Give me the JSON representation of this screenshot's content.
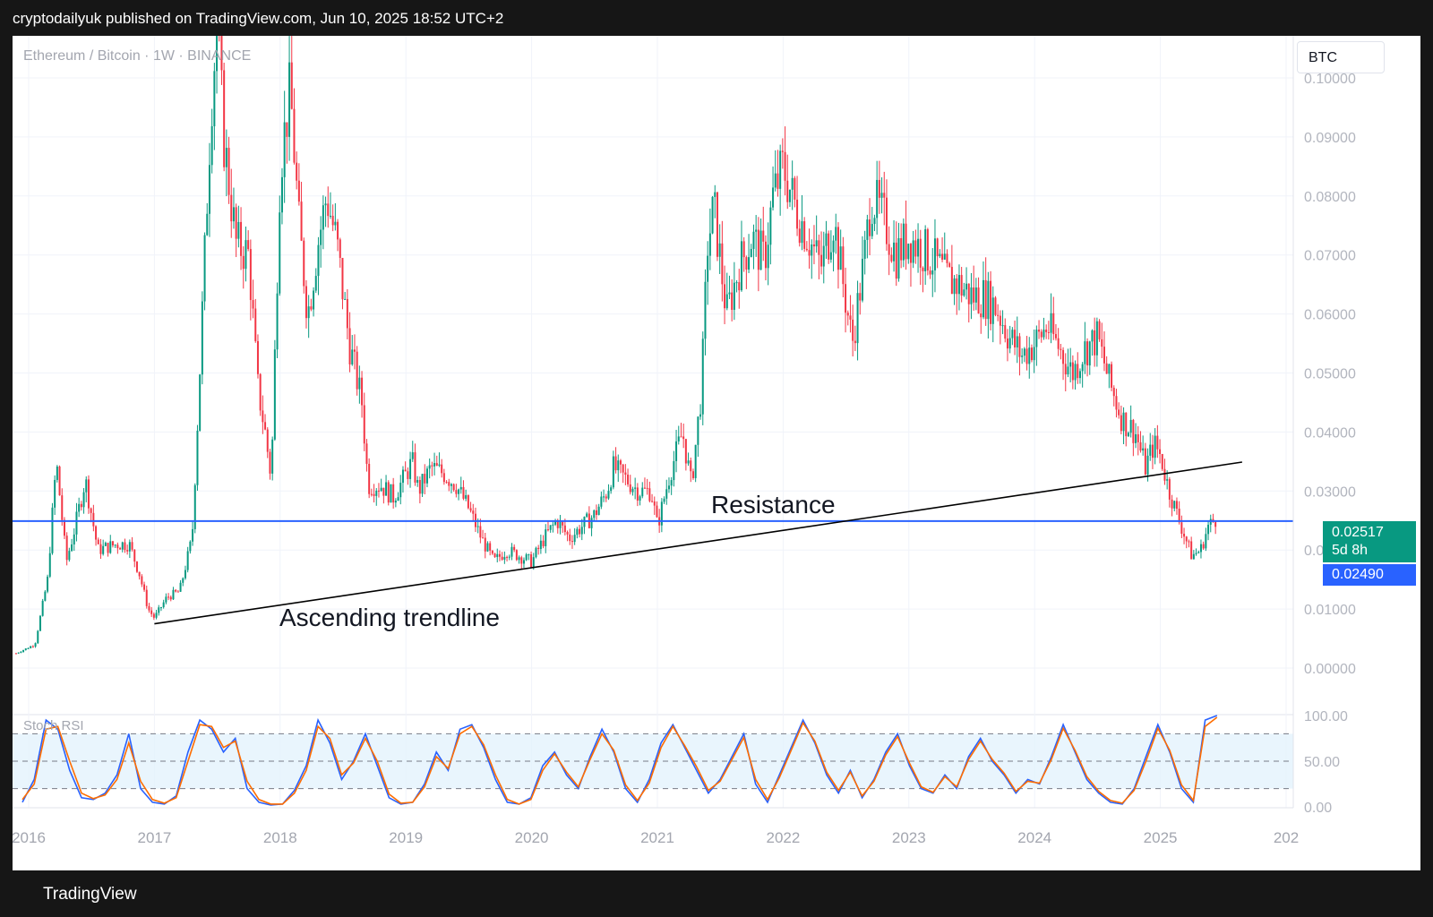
{
  "header": {
    "published": "cryptodailyuk published on TradingView.com, Jun 10, 2025 18:52 UTC+2"
  },
  "chart": {
    "symbol_title": "Ethereum / Bitcoin · 1W · BINANCE",
    "currency": "BTC",
    "last_price": "0.02517",
    "countdown": "5d 8h",
    "ref_price": "0.02490",
    "indicator_title": "Stoch RSI",
    "colors": {
      "up": "#089981",
      "down": "#f23645",
      "line": "#2962ff",
      "stoch_k": "#2962ff",
      "stoch_d": "#ff6d00",
      "trend": "#000000"
    }
  },
  "footer": {
    "brand": "TradingView",
    "logo_icon": "tradingview-logo-icon"
  },
  "chart_data": [
    {
      "type": "candlestick",
      "title": "Ethereum / Bitcoin · 1W · BINANCE",
      "ylim": [
        -0.005,
        0.108
      ],
      "y_ticks": [
        "0.00000",
        "0.01000",
        "0.02000",
        "0.03000",
        "0.04000",
        "0.05000",
        "0.06000",
        "0.07000",
        "0.08000",
        "0.09000",
        "0.10000"
      ],
      "x_ticks": [
        "2016",
        "2017",
        "2018",
        "2019",
        "2020",
        "2021",
        "2022",
        "2023",
        "2024",
        "2025",
        "202"
      ],
      "series_close_path": [
        [
          2015.9,
          0.0025
        ],
        [
          2016.05,
          0.004
        ],
        [
          2016.15,
          0.015
        ],
        [
          2016.22,
          0.035
        ],
        [
          2016.3,
          0.018
        ],
        [
          2016.37,
          0.024
        ],
        [
          2016.45,
          0.032
        ],
        [
          2016.55,
          0.02
        ],
        [
          2016.7,
          0.021
        ],
        [
          2016.8,
          0.021
        ],
        [
          2016.88,
          0.016
        ],
        [
          2016.95,
          0.01
        ],
        [
          2017.0,
          0.0085
        ],
        [
          2017.1,
          0.012
        ],
        [
          2017.2,
          0.013
        ],
        [
          2017.3,
          0.022
        ],
        [
          2017.35,
          0.045
        ],
        [
          2017.45,
          0.095
        ],
        [
          2017.5,
          0.11
        ],
        [
          2017.55,
          0.09
        ],
        [
          2017.65,
          0.072
        ],
        [
          2017.75,
          0.07
        ],
        [
          2017.82,
          0.048
        ],
        [
          2017.88,
          0.04
        ],
        [
          2017.93,
          0.032
        ],
        [
          2018.0,
          0.085
        ],
        [
          2018.08,
          0.098
        ],
        [
          2018.15,
          0.075
        ],
        [
          2018.22,
          0.06
        ],
        [
          2018.3,
          0.072
        ],
        [
          2018.37,
          0.08
        ],
        [
          2018.45,
          0.072
        ],
        [
          2018.55,
          0.055
        ],
        [
          2018.65,
          0.045
        ],
        [
          2018.7,
          0.031
        ],
        [
          2018.8,
          0.031
        ],
        [
          2018.9,
          0.029
        ],
        [
          2018.98,
          0.032
        ],
        [
          2019.05,
          0.035
        ],
        [
          2019.1,
          0.03
        ],
        [
          2019.2,
          0.034
        ],
        [
          2019.3,
          0.033
        ],
        [
          2019.4,
          0.031
        ],
        [
          2019.5,
          0.027
        ],
        [
          2019.6,
          0.022
        ],
        [
          2019.7,
          0.018
        ],
        [
          2019.8,
          0.02
        ],
        [
          2019.9,
          0.019
        ],
        [
          2020.0,
          0.018
        ],
        [
          2020.1,
          0.022
        ],
        [
          2020.2,
          0.025
        ],
        [
          2020.3,
          0.022
        ],
        [
          2020.4,
          0.024
        ],
        [
          2020.5,
          0.026
        ],
        [
          2020.6,
          0.03
        ],
        [
          2020.65,
          0.034
        ],
        [
          2020.75,
          0.032
        ],
        [
          2020.85,
          0.03
        ],
        [
          2020.95,
          0.03
        ],
        [
          2021.0,
          0.024
        ],
        [
          2021.1,
          0.033
        ],
        [
          2021.2,
          0.04
        ],
        [
          2021.27,
          0.031
        ],
        [
          2021.35,
          0.047
        ],
        [
          2021.4,
          0.072
        ],
        [
          2021.45,
          0.078
        ],
        [
          2021.55,
          0.06
        ],
        [
          2021.65,
          0.068
        ],
        [
          2021.75,
          0.073
        ],
        [
          2021.85,
          0.069
        ],
        [
          2021.92,
          0.08
        ],
        [
          2022.0,
          0.085
        ],
        [
          2022.1,
          0.078
        ],
        [
          2022.2,
          0.073
        ],
        [
          2022.3,
          0.068
        ],
        [
          2022.4,
          0.076
        ],
        [
          2022.5,
          0.062
        ],
        [
          2022.55,
          0.055
        ],
        [
          2022.65,
          0.07
        ],
        [
          2022.7,
          0.08
        ],
        [
          2022.8,
          0.076
        ],
        [
          2022.9,
          0.07
        ],
        [
          2023.0,
          0.073
        ],
        [
          2023.1,
          0.071
        ],
        [
          2023.2,
          0.069
        ],
        [
          2023.3,
          0.066
        ],
        [
          2023.4,
          0.065
        ],
        [
          2023.5,
          0.063
        ],
        [
          2023.6,
          0.063
        ],
        [
          2023.7,
          0.061
        ],
        [
          2023.8,
          0.056
        ],
        [
          2023.9,
          0.053
        ],
        [
          2024.0,
          0.055
        ],
        [
          2024.1,
          0.058
        ],
        [
          2024.2,
          0.054
        ],
        [
          2024.3,
          0.05
        ],
        [
          2024.4,
          0.054
        ],
        [
          2024.5,
          0.056
        ],
        [
          2024.6,
          0.048
        ],
        [
          2024.7,
          0.042
        ],
        [
          2024.8,
          0.04
        ],
        [
          2024.88,
          0.034
        ],
        [
          2024.95,
          0.038
        ],
        [
          2025.0,
          0.036
        ],
        [
          2025.07,
          0.03
        ],
        [
          2025.15,
          0.025
        ],
        [
          2025.25,
          0.019
        ],
        [
          2025.32,
          0.02
        ],
        [
          2025.38,
          0.024
        ],
        [
          2025.44,
          0.0252
        ]
      ],
      "support_line": 0.0249,
      "trendline": [
        [
          2017.0,
          0.0075
        ],
        [
          2025.65,
          0.0349
        ]
      ],
      "annotations": [
        "Resistance",
        "Ascending trendline"
      ]
    },
    {
      "type": "line",
      "title": "Stoch RSI",
      "ylim": [
        0,
        100
      ],
      "y_ticks": [
        "0.00",
        "50.00",
        "100.00"
      ],
      "bands": [
        20,
        50,
        80
      ],
      "series": [
        {
          "color": "#2962ff",
          "values": [
            5,
            30,
            95,
            85,
            40,
            10,
            8,
            15,
            35,
            80,
            20,
            5,
            3,
            12,
            60,
            95,
            85,
            60,
            75,
            20,
            5,
            2,
            3,
            18,
            45,
            95,
            70,
            30,
            50,
            80,
            45,
            10,
            3,
            5,
            25,
            60,
            40,
            85,
            90,
            65,
            30,
            5,
            3,
            10,
            45,
            60,
            35,
            20,
            55,
            85,
            60,
            20,
            5,
            30,
            70,
            90,
            65,
            40,
            15,
            30,
            55,
            80,
            25,
            5,
            35,
            65,
            95,
            70,
            35,
            15,
            40,
            10,
            30,
            60,
            80,
            45,
            20,
            15,
            35,
            20,
            55,
            75,
            50,
            35,
            15,
            30,
            25,
            55,
            90,
            60,
            30,
            15,
            5,
            3,
            20,
            55,
            90,
            60,
            20,
            5,
            95,
            100
          ]
        },
        {
          "color": "#ff6d00",
          "values": [
            8,
            25,
            85,
            88,
            50,
            15,
            9,
            13,
            30,
            70,
            28,
            8,
            4,
            10,
            50,
            90,
            88,
            65,
            72,
            28,
            8,
            3,
            3,
            15,
            40,
            88,
            75,
            35,
            48,
            75,
            50,
            14,
            4,
            5,
            22,
            55,
            42,
            80,
            88,
            68,
            35,
            8,
            3,
            8,
            40,
            58,
            38,
            22,
            52,
            80,
            62,
            24,
            7,
            26,
            65,
            88,
            67,
            44,
            18,
            28,
            52,
            76,
            30,
            8,
            32,
            62,
            92,
            72,
            38,
            18,
            38,
            12,
            28,
            57,
            77,
            48,
            22,
            16,
            33,
            22,
            52,
            72,
            52,
            37,
            17,
            28,
            26,
            52,
            86,
            62,
            33,
            17,
            7,
            4,
            18,
            50,
            86,
            62,
            24,
            7,
            88,
            98
          ]
        }
      ]
    }
  ]
}
